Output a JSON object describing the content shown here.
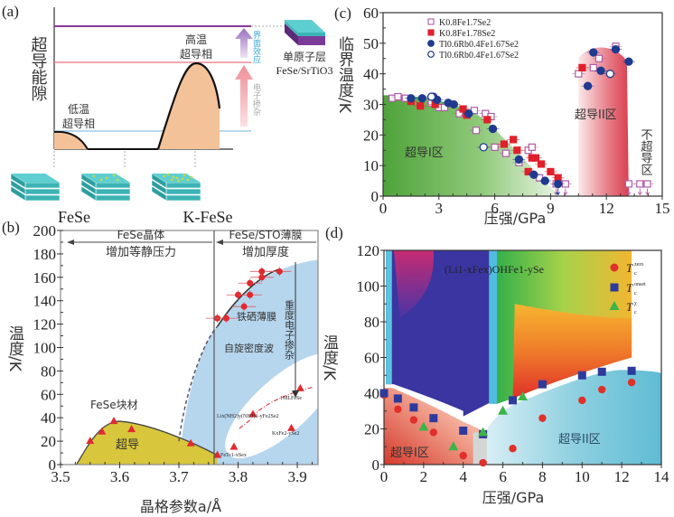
{
  "figure": {
    "panel_labels": [
      "(a)",
      "(b)",
      "(c)",
      "(d)"
    ]
  },
  "chart_data": [
    {
      "id": "a",
      "type": "diagram",
      "ylabel": "超导能隙",
      "low_phase_label": [
        "低温",
        "超导相"
      ],
      "high_phase_label": [
        "高温",
        "超导相"
      ],
      "arrow_labels": {
        "interface": "界面效应",
        "doping": "电子掺杂"
      },
      "monolayer_label": [
        "单原子层",
        "FeSe/SrTiO3"
      ],
      "material_labels": [
        "FeSe",
        "",
        "K-FeSe"
      ],
      "level_colors": {
        "monolayer": "#8a3a9a",
        "k_fese": "#ee8c94",
        "fese": "#9fcbe8"
      },
      "dome_fill": "#f4c299"
    },
    {
      "id": "b",
      "type": "scatter",
      "xlabel": "晶格参数a/Å",
      "ylabel": "温度/K",
      "xlim": [
        3.5,
        3.935
      ],
      "ylim": [
        0,
        200
      ],
      "xticks": [
        3.5,
        3.6,
        3.7,
        3.8,
        3.9
      ],
      "yticks": [
        0,
        20,
        40,
        60,
        80,
        100,
        120,
        140,
        160,
        180,
        200
      ],
      "header_left": [
        "FeSe晶体",
        "增加等静压力"
      ],
      "header_right": [
        "FeSe/STO薄膜",
        "增加厚度"
      ],
      "region_labels": {
        "bulk": "FeSe块材",
        "sc": "超导",
        "film": "铁硒薄膜",
        "sdw": "自旋密度波",
        "doping": "重度电子掺杂"
      },
      "annotations": [
        "1MLFeSe",
        "Lix(NH2)y(NH3)1-yFe2Se2",
        "KxFe2-ySe2",
        "FeTe1-xSex"
      ],
      "bulk_triangles": [
        {
          "x": 3.55,
          "y": 20
        },
        {
          "x": 3.57,
          "y": 28
        },
        {
          "x": 3.59,
          "y": 37
        },
        {
          "x": 3.62,
          "y": 30
        },
        {
          "x": 3.72,
          "y": 18
        },
        {
          "x": 3.765,
          "y": 8
        }
      ],
      "film_points": [
        {
          "x": 3.765,
          "y": 125
        },
        {
          "x": 3.78,
          "y": 125
        },
        {
          "x": 3.81,
          "y": 135
        },
        {
          "x": 3.8,
          "y": 145
        },
        {
          "x": 3.82,
          "y": 145
        },
        {
          "x": 3.82,
          "y": 155
        },
        {
          "x": 3.84,
          "y": 160
        },
        {
          "x": 3.84,
          "y": 165
        },
        {
          "x": 3.87,
          "y": 165
        }
      ],
      "doped_triangles": [
        {
          "x": 3.905,
          "y": 65,
          "label": "1MLFeSe"
        },
        {
          "x": 3.825,
          "y": 43,
          "label": "Lix(NH2)y(NH3)1-yFe2Se2"
        },
        {
          "x": 3.89,
          "y": 31,
          "label": "KxFe2-ySe2"
        },
        {
          "x": 3.793,
          "y": 15,
          "label": ""
        }
      ]
    },
    {
      "id": "c",
      "type": "scatter",
      "xlabel": "压强/GPa",
      "ylabel": "临界温度/K",
      "xlim": [
        0,
        15
      ],
      "ylim": [
        0,
        60
      ],
      "xticks": [
        0,
        3,
        6,
        9,
        12,
        15
      ],
      "yticks": [
        0,
        10,
        20,
        30,
        40,
        50,
        60
      ],
      "region_labels": {
        "sc1": "超导I区",
        "sc2": "超导II区",
        "nonsc": "不超导区"
      },
      "legend": [
        {
          "name": "K0.8Fe1.7Se2",
          "marker": "open-square",
          "color": "#b05aa8"
        },
        {
          "name": "K0.8Fe1.78Se2",
          "marker": "filled-square",
          "color": "#e0202a"
        },
        {
          "name": "Tl0.6Rb0.4Fe1.67Se2",
          "marker": "filled-circle",
          "color": "#1f3a8f"
        },
        {
          "name": "Tl0.6Rb0.4Fe1.67Se2",
          "marker": "open-circle",
          "color": "#1f3a8f"
        }
      ],
      "series": [
        {
          "name": "K0.8Fe1.7Se2 (open square)",
          "points": [
            [
              0.5,
              32
            ],
            [
              0.8,
              32.5
            ],
            [
              1.2,
              32
            ],
            [
              2.6,
              30.5
            ],
            [
              3,
              29
            ],
            [
              3.3,
              29
            ],
            [
              4.1,
              27
            ],
            [
              4.9,
              28
            ],
            [
              5,
              21.5
            ],
            [
              5.5,
              27
            ],
            [
              5.8,
              26
            ],
            [
              6,
              16
            ],
            [
              6.6,
              14
            ],
            [
              7.3,
              11
            ],
            [
              7.8,
              15
            ],
            [
              8,
              16
            ],
            [
              8.4,
              6
            ],
            [
              9.3,
              4
            ],
            [
              9.8,
              4
            ],
            [
              10.5,
              40
            ],
            [
              11.3,
              42
            ],
            [
              11.6,
              45
            ],
            [
              12.5,
              49
            ],
            [
              13.2,
              4
            ],
            [
              13.8,
              4
            ],
            [
              14.2,
              4
            ]
          ]
        },
        {
          "name": "K0.8Fe1.78Se2 (filled square)",
          "points": [
            [
              1.5,
              31
            ],
            [
              2,
              29.5
            ],
            [
              2.8,
              30
            ],
            [
              4.3,
              28.5
            ],
            [
              4.5,
              26.5
            ],
            [
              5.6,
              25
            ],
            [
              6.5,
              17
            ],
            [
              7,
              18.5
            ],
            [
              7.2,
              15
            ],
            [
              7.8,
              8
            ],
            [
              8,
              12.5
            ],
            [
              8.2,
              12.5
            ],
            [
              8.5,
              10.5
            ],
            [
              9,
              8
            ],
            [
              9.4,
              6
            ],
            [
              10.7,
              42
            ]
          ]
        },
        {
          "name": "Tl0.6Rb0.4Fe1.67Se2 (filled circle)",
          "points": [
            [
              1.5,
              32
            ],
            [
              2.1,
              32
            ],
            [
              2.7,
              32.5
            ],
            [
              2.9,
              31.5
            ],
            [
              3.5,
              30.5
            ],
            [
              3.8,
              30
            ],
            [
              4.6,
              27
            ],
            [
              5.9,
              22
            ],
            [
              7.3,
              12
            ],
            [
              8.1,
              7
            ],
            [
              8.7,
              5
            ],
            [
              9.4,
              4
            ],
            [
              11,
              36
            ],
            [
              11.3,
              47
            ],
            [
              11.7,
              41
            ],
            [
              12.5,
              48
            ],
            [
              13.2,
              44
            ]
          ]
        },
        {
          "name": "Tl0.6Rb0.4Fe1.67Se2 (open circle)",
          "points": [
            [
              2.6,
              32.5
            ],
            [
              5.4,
              16
            ],
            [
              12.2,
              40
            ]
          ]
        }
      ]
    },
    {
      "id": "d",
      "type": "heatmap",
      "xlabel": "压强/GPa",
      "ylabel": "温度/K",
      "xlim": [
        0,
        14
      ],
      "ylim": [
        0,
        120
      ],
      "xticks": [
        0,
        2,
        4,
        6,
        8,
        10,
        12,
        14
      ],
      "yticks": [
        0,
        20,
        40,
        60,
        80,
        100,
        120
      ],
      "compound": "(Li1-xFex)OHFe1-ySe",
      "region_labels": {
        "sc1": "超导I区",
        "sc2": "超导II区"
      },
      "legend": [
        {
          "name": "Tc zero",
          "sup": "zero",
          "marker": "circle",
          "color": "#e0302a"
        },
        {
          "name": "Tc onset",
          "sup": "onset",
          "marker": "square",
          "color": "#2e3a9c"
        },
        {
          "name": "Tc χ",
          "sup": "χ",
          "marker": "triangle",
          "color": "#3cb44a"
        }
      ],
      "series": [
        {
          "name": "Tc zero",
          "points": [
            [
              0,
              39
            ],
            [
              0.7,
              31
            ],
            [
              1.5,
              25
            ],
            [
              2.5,
              18
            ],
            [
              4,
              5
            ],
            [
              5,
              1
            ],
            [
              6.5,
              9
            ],
            [
              8,
              26
            ],
            [
              10,
              36
            ],
            [
              11,
              42
            ],
            [
              12.5,
              46
            ]
          ]
        },
        {
          "name": "Tc onset",
          "points": [
            [
              0,
              40
            ],
            [
              0.7,
              37
            ],
            [
              1.5,
              32
            ],
            [
              2.5,
              26
            ],
            [
              4,
              19
            ],
            [
              5,
              17
            ],
            [
              6.5,
              36
            ],
            [
              8,
              45
            ],
            [
              10,
              50
            ],
            [
              11,
              52
            ],
            [
              12.5,
              52.5
            ]
          ]
        },
        {
          "name": "Tc chi",
          "points": [
            [
              2,
              21
            ],
            [
              3.5,
              10
            ],
            [
              5,
              18
            ],
            [
              6,
              30
            ],
            [
              7,
              38
            ]
          ]
        }
      ]
    }
  ]
}
